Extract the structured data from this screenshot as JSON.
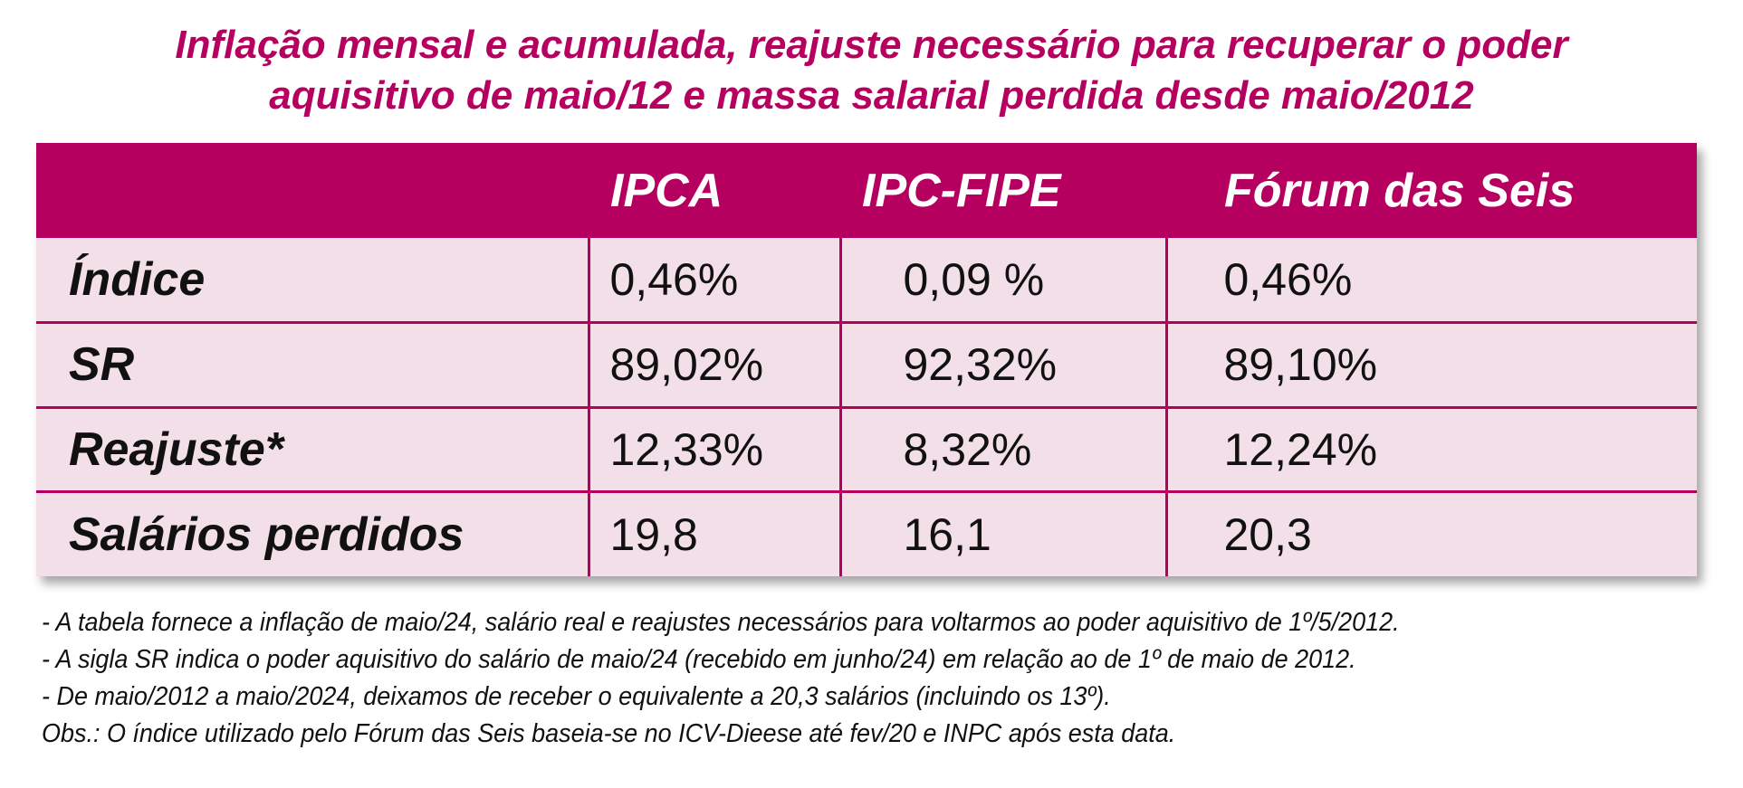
{
  "title": {
    "line1": "Inflação mensal e acumulada, reajuste necessário para recuperar o poder",
    "line2": "aquisitivo de maio/12 e massa salarial perdida desde maio/2012"
  },
  "table": {
    "columns": [
      "",
      "IPCA",
      "IPC-FIPE",
      "Fórum das Seis"
    ],
    "rows": [
      {
        "label": "Índice",
        "values": [
          "0,46%",
          "0,09 %",
          "0,46%"
        ]
      },
      {
        "label": "SR",
        "values": [
          "89,02%",
          "92,32%",
          "89,10%"
        ]
      },
      {
        "label": "Reajuste*",
        "values": [
          "12,33%",
          "8,32%",
          "12,24%"
        ]
      },
      {
        "label": "Salários perdidos",
        "values": [
          "19,8",
          "16,1",
          "20,3"
        ]
      }
    ]
  },
  "notes": [
    "- A tabela fornece a inflação de maio/24, salário real e reajustes necessários para voltarmos ao poder aquisitivo de 1º/5/2012.",
    "- A sigla SR indica o poder aquisitivo do salário de maio/24 (recebido em junho/24) em relação ao de 1º de maio de 2012.",
    "- De maio/2012 a maio/2024, deixamos de receber o equivalente a 20,3 salários (incluindo os 13º).",
    "Obs.: O índice utilizado pelo Fórum das Seis baseia-se no ICV-Dieese até fev/20 e INPC após esta data."
  ],
  "colors": {
    "accent": "#b5005f",
    "row_background": "#f2dfe8"
  }
}
